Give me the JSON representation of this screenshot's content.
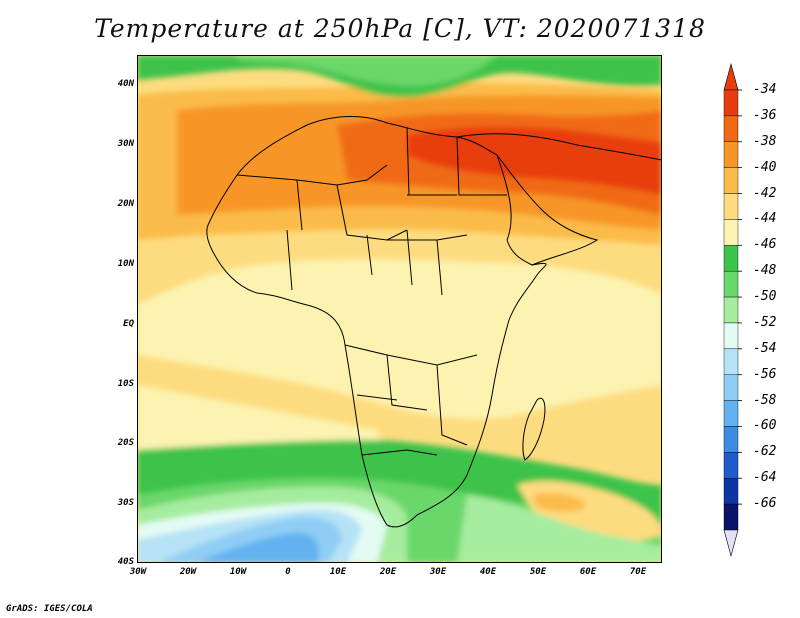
{
  "title": "Temperature at 250hPa [C], VT: 2020071318",
  "footer": "GrADS: IGES/COLA",
  "lat_labels": [
    "40N",
    "30N",
    "20N",
    "10N",
    "EQ",
    "10S",
    "20S",
    "30S",
    "40S"
  ],
  "lon_labels": [
    "30W",
    "20W",
    "10W",
    "0",
    "10E",
    "20E",
    "30E",
    "40E",
    "50E",
    "60E",
    "70E"
  ],
  "colorbar": {
    "labels": [
      "-34",
      "-36",
      "-38",
      "-40",
      "-42",
      "-44",
      "-46",
      "-48",
      "-50",
      "-52",
      "-54",
      "-56",
      "-58",
      "-60",
      "-62",
      "-64",
      "-66"
    ],
    "colors": [
      "#e83c0f",
      "#f06a12",
      "#f79628",
      "#fbbb4a",
      "#fddc80",
      "#fcf3b0",
      "#3ec34a",
      "#6ad76a",
      "#a6ec9e",
      "#e4fbf4",
      "#b6e2f7",
      "#8fcdf5",
      "#62b2ef",
      "#3c8ce2",
      "#1e5ccc",
      "#0d36a3",
      "#08136b"
    ]
  },
  "map": {
    "domain": "Africa",
    "variable": "Temperature at 250hPa",
    "units": "C",
    "valid_time": "2020071318",
    "lon_range": [
      -30,
      75
    ],
    "lat_range": [
      -40,
      45
    ]
  }
}
